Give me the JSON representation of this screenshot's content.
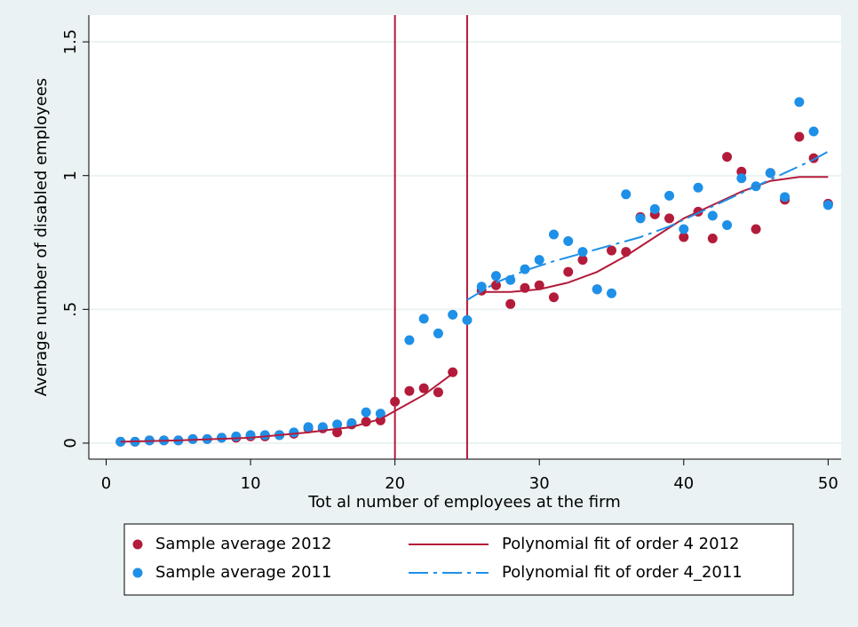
{
  "chart_data": {
    "type": "scatter",
    "xlabel": "Tot al number of employees at the firm",
    "ylabel": "Average number of disabled employees",
    "xlim": [
      -1.2,
      50.9
    ],
    "ylim": [
      -0.06,
      1.6
    ],
    "xticks": [
      0,
      10,
      20,
      30,
      40,
      50
    ],
    "yticks": [
      0,
      {
        "value": 0.5,
        "label": ".5"
      },
      1,
      1.5
    ],
    "grid": true,
    "vlines": [
      20,
      25
    ],
    "vline_color": "#b31b3b",
    "x": [
      1,
      2,
      3,
      4,
      5,
      6,
      7,
      8,
      9,
      10,
      11,
      12,
      13,
      14,
      15,
      16,
      17,
      18,
      19,
      20,
      21,
      22,
      23,
      24,
      25,
      26,
      27,
      28,
      29,
      30,
      31,
      32,
      33,
      34,
      35,
      36,
      37,
      38,
      39,
      40,
      41,
      42,
      43,
      44,
      45,
      46,
      47,
      48,
      49,
      50
    ],
    "series": [
      {
        "name": "Sample average 2012",
        "color": "#b31b3b",
        "kind": "points",
        "values": [
          0.005,
          0.005,
          0.01,
          0.01,
          0.01,
          0.015,
          0.015,
          0.02,
          0.02,
          0.025,
          0.025,
          0.03,
          0.035,
          0.055,
          0.055,
          0.04,
          0.07,
          0.08,
          0.085,
          0.155,
          0.195,
          0.205,
          0.19,
          0.265,
          null,
          0.57,
          0.59,
          0.52,
          0.58,
          0.59,
          0.545,
          0.64,
          0.685,
          0.575,
          0.72,
          0.715,
          0.845,
          0.855,
          0.84,
          0.77,
          0.865,
          0.765,
          1.07,
          1.015,
          0.8,
          1.01,
          0.91,
          1.145,
          1.065,
          0.895
        ]
      },
      {
        "name": "Sample average 2011",
        "color": "#1e90e8",
        "kind": "points",
        "values": [
          0.005,
          0.005,
          0.01,
          0.01,
          0.01,
          0.015,
          0.015,
          0.02,
          0.025,
          0.03,
          0.03,
          0.03,
          0.04,
          0.06,
          0.06,
          0.07,
          0.075,
          0.115,
          0.11,
          null,
          0.385,
          0.465,
          0.41,
          0.48,
          0.46,
          0.585,
          0.625,
          0.61,
          0.65,
          0.685,
          0.78,
          0.755,
          0.715,
          0.575,
          0.56,
          0.93,
          0.84,
          0.875,
          0.925,
          0.8,
          0.955,
          0.85,
          0.815,
          0.99,
          0.96,
          1.01,
          0.92,
          1.275,
          1.165,
          0.89
        ]
      },
      {
        "name": "Polynomial fit of order 4 2012",
        "color": "#b31b3b",
        "kind": "solid",
        "x": [
          1,
          5,
          10,
          14,
          17,
          19,
          20,
          21,
          22,
          23,
          24,
          25,
          26,
          28,
          30,
          32,
          34,
          36,
          38,
          40,
          42,
          44,
          46,
          48,
          50
        ],
        "values": [
          0.005,
          0.01,
          0.02,
          0.04,
          0.06,
          0.09,
          0.12,
          0.15,
          0.18,
          0.22,
          0.26,
          null,
          0.565,
          0.565,
          0.575,
          0.6,
          0.64,
          0.7,
          0.77,
          0.84,
          0.89,
          0.94,
          0.98,
          0.995,
          0.995
        ]
      },
      {
        "name": "Polynomial fit of order 4_2011",
        "color": "#1e90e8",
        "kind": "dashdot",
        "x": [
          25,
          27,
          29,
          31,
          33,
          35,
          37,
          39,
          41,
          43,
          45,
          47,
          49,
          50
        ],
        "values": [
          0.535,
          0.6,
          0.645,
          0.68,
          0.71,
          0.74,
          0.77,
          0.81,
          0.86,
          0.91,
          0.96,
          1.01,
          1.06,
          1.09
        ]
      }
    ]
  }
}
